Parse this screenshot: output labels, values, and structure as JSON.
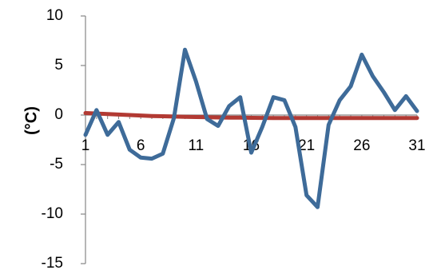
{
  "chart_data": {
    "type": "line",
    "title": "",
    "xlabel": "",
    "ylabel": "(°C)",
    "ylim": [
      -15,
      10
    ],
    "xlim": [
      1,
      31
    ],
    "y_ticks": [
      10,
      5,
      0,
      -5,
      -10,
      -15
    ],
    "x_tick_labels": [
      1,
      6,
      11,
      16,
      21,
      26,
      31
    ],
    "grid": false,
    "legend": "none",
    "colors": {
      "series_1": "#3e6b99",
      "series_2": "#b23a33",
      "axis": "#868686"
    },
    "series": [
      {
        "x": [
          1,
          2,
          3,
          4,
          5,
          6,
          7,
          8,
          9,
          10,
          11,
          12,
          13,
          14,
          15,
          16,
          17,
          18,
          19,
          20,
          21,
          22,
          23,
          24,
          25,
          26,
          27,
          28,
          29,
          30,
          31
        ],
        "values": [
          -2.0,
          0.5,
          -2.0,
          -0.7,
          -3.5,
          -4.3,
          -4.4,
          -3.9,
          -0.3,
          6.6,
          3.4,
          -0.4,
          -1.1,
          0.9,
          1.8,
          -3.8,
          -1.2,
          1.8,
          1.5,
          -1.2,
          -8.1,
          -9.3,
          -1.0,
          1.5,
          2.9,
          6.1,
          3.9,
          2.3,
          0.5,
          1.9,
          0.4
        ]
      },
      {
        "x": [
          1,
          2,
          3,
          4,
          5,
          6,
          7,
          8,
          9,
          10,
          11,
          12,
          13,
          14,
          15,
          16,
          17,
          18,
          19,
          20,
          21,
          22,
          23,
          24,
          25,
          26,
          27,
          28,
          29,
          30,
          31
        ],
        "values": [
          0.2,
          0.15,
          0.1,
          0.05,
          0.0,
          -0.05,
          -0.1,
          -0.12,
          -0.15,
          -0.18,
          -0.2,
          -0.22,
          -0.24,
          -0.26,
          -0.27,
          -0.28,
          -0.29,
          -0.3,
          -0.3,
          -0.3,
          -0.3,
          -0.3,
          -0.3,
          -0.3,
          -0.3,
          -0.3,
          -0.3,
          -0.3,
          -0.3,
          -0.3,
          -0.3
        ]
      }
    ]
  }
}
